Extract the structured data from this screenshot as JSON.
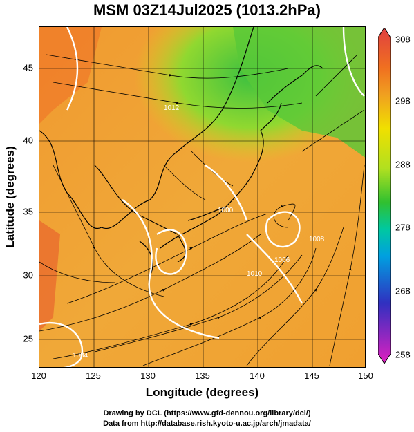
{
  "title": "MSM 03Z14Jul2025 (1013.2hPa)",
  "x_axis": {
    "label": "Longitude (degrees)",
    "ticks": [
      "120",
      "125",
      "130",
      "135",
      "140",
      "145",
      "150"
    ]
  },
  "y_axis": {
    "label": "Latitude  (degrees)",
    "ticks": [
      "25",
      "30",
      "35",
      "40",
      "45"
    ]
  },
  "colorbar": {
    "ticks": [
      "308",
      "298",
      "288",
      "278",
      "268",
      "258"
    ],
    "min": 258,
    "max": 308,
    "colors": [
      "#e020c0",
      "#3030c0",
      "#00a0e0",
      "#00c8a0",
      "#30c030",
      "#b0e020",
      "#f0e000",
      "#f0a020",
      "#f07020",
      "#e04040"
    ]
  },
  "contour_labels": [
    "1004",
    "1000",
    "1008",
    "1006",
    "1010",
    "1012"
  ],
  "credits": {
    "line1": "Drawing by DCL (https://www.gfd-dennou.org/library/dcl/)",
    "line2": "Data from http://database.rish.kyoto-u.ac.jp/arch/jmadata/"
  }
}
